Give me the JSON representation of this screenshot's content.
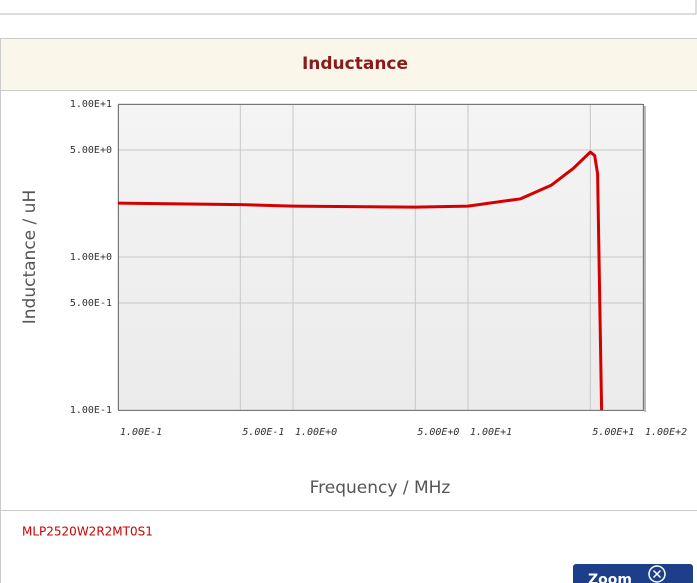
{
  "chart_data": {
    "type": "line",
    "title": "Inductance",
    "x_label": "Frequency / MHz",
    "y_label": "Inductance / uH",
    "x": [
      0.1,
      0.5,
      1,
      5,
      10,
      20,
      30,
      40,
      50,
      53,
      55,
      58
    ],
    "series": [
      {
        "name": "MLP2520W2R2MT0S1",
        "color": "#d40000",
        "values": [
          2.25,
          2.2,
          2.15,
          2.12,
          2.15,
          2.4,
          2.95,
          3.8,
          4.85,
          4.6,
          3.5,
          0.1
        ]
      }
    ],
    "xlim": [
      0.1,
      100
    ],
    "ylim": [
      0.1,
      10
    ],
    "xscale": "log",
    "yscale": "log",
    "grid": true,
    "xticks": [
      {
        "value": 0.1,
        "label": "1.00E-1"
      },
      {
        "value": 0.5,
        "label": "5.00E-1"
      },
      {
        "value": 1,
        "label": "1.00E+0"
      },
      {
        "value": 5,
        "label": "5.00E+0"
      },
      {
        "value": 10,
        "label": "1.00E+1"
      },
      {
        "value": 50,
        "label": "5.00E+1"
      },
      {
        "value": 100,
        "label": "1.00E+2"
      }
    ],
    "yticks": [
      {
        "value": 0.1,
        "label": "1.00E-1"
      },
      {
        "value": 0.5,
        "label": "5.00E-1"
      },
      {
        "value": 1,
        "label": "1.00E+0"
      },
      {
        "value": 5,
        "label": "5.00E+0"
      },
      {
        "value": 10,
        "label": "1.00E+1"
      }
    ]
  },
  "ui": {
    "part_number": "MLP2520W2R2MT0S1",
    "zoom_button": "Zoom"
  }
}
